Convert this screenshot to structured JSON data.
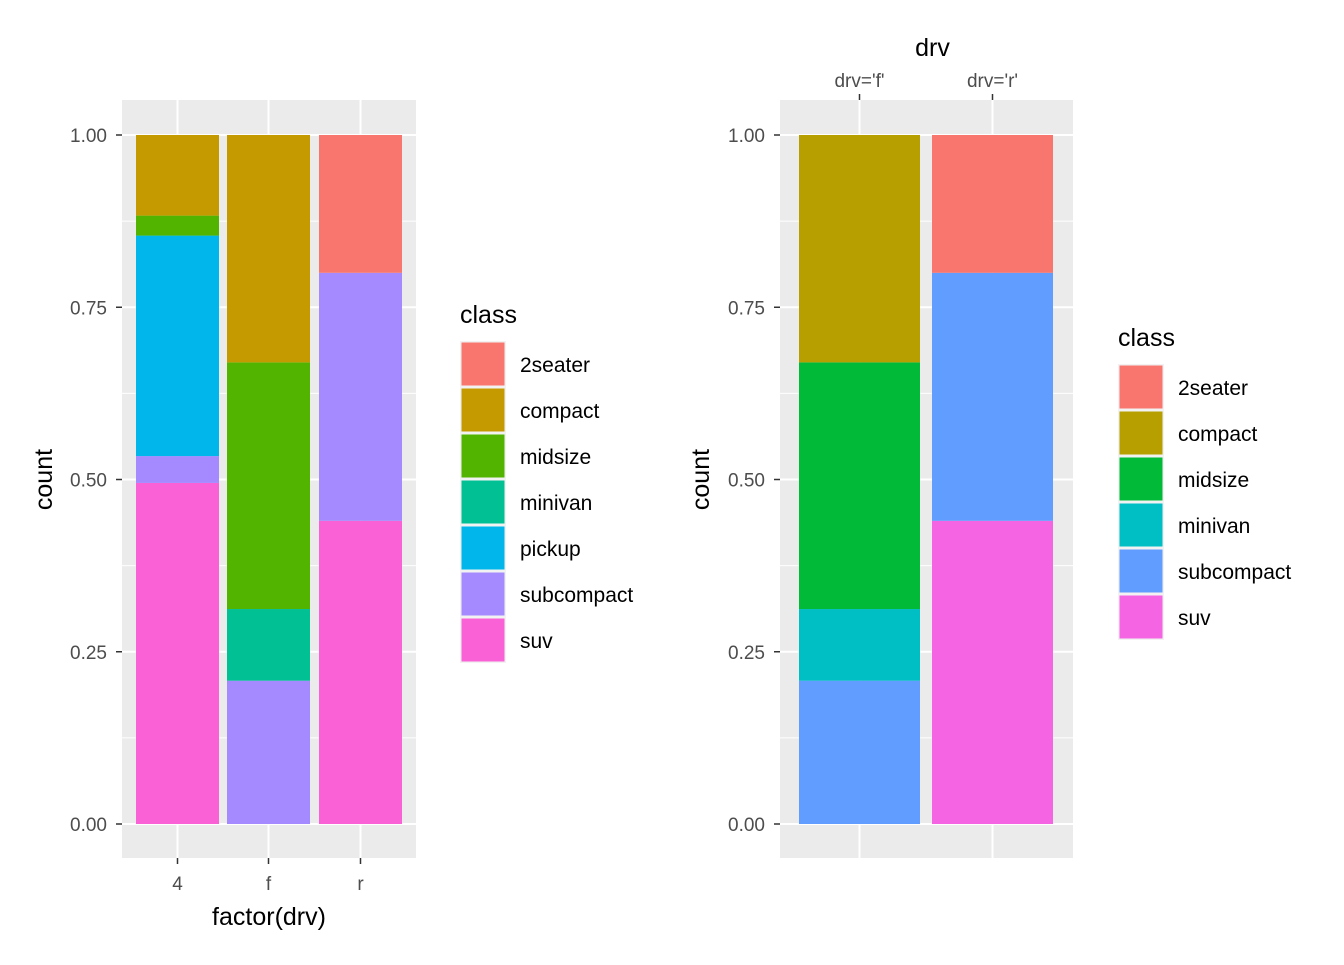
{
  "chart_data": [
    {
      "type": "bar",
      "stacked": true,
      "position": "fill",
      "xlabel": "factor(drv)",
      "ylabel": "count",
      "ylim": [
        0,
        1
      ],
      "y_ticks": [
        "0.00",
        "0.25",
        "0.50",
        "0.75",
        "1.00"
      ],
      "grid": true,
      "legend_placement": "right",
      "categories": [
        "4",
        "f",
        "r"
      ],
      "legend": {
        "title": "class",
        "items": [
          {
            "label": "2seater",
            "color": "#F8766D"
          },
          {
            "label": "compact",
            "color": "#C49A00"
          },
          {
            "label": "midsize",
            "color": "#53B400"
          },
          {
            "label": "minivan",
            "color": "#00C094"
          },
          {
            "label": "pickup",
            "color": "#00B6EB"
          },
          {
            "label": "subcompact",
            "color": "#A58AFF"
          },
          {
            "label": "suv",
            "color": "#FB61D7"
          }
        ]
      },
      "series": [
        {
          "name": "suv",
          "color": "#FB61D7",
          "values": [
            0.495,
            0,
            0.44
          ]
        },
        {
          "name": "subcompact",
          "color": "#A58AFF",
          "values": [
            0.039,
            0.208,
            0.36
          ]
        },
        {
          "name": "pickup",
          "color": "#00B6EB",
          "values": [
            0.32,
            0,
            0
          ]
        },
        {
          "name": "minivan",
          "color": "#00C094",
          "values": [
            0,
            0.104,
            0
          ]
        },
        {
          "name": "midsize",
          "color": "#53B400",
          "values": [
            0.029,
            0.358,
            0
          ]
        },
        {
          "name": "compact",
          "color": "#C49A00",
          "values": [
            0.117,
            0.33,
            0
          ]
        },
        {
          "name": "2seater",
          "color": "#F8766D",
          "values": [
            0,
            0,
            0.2
          ]
        }
      ]
    },
    {
      "type": "bar",
      "stacked": true,
      "position": "fill",
      "xlabel": "",
      "ylabel": "count",
      "top_axis_title": "drv",
      "ylim": [
        0,
        1
      ],
      "y_ticks": [
        "0.00",
        "0.25",
        "0.50",
        "0.75",
        "1.00"
      ],
      "grid": true,
      "legend_placement": "right",
      "categories": [
        "drv='f'",
        "drv='r'"
      ],
      "legend": {
        "title": "class",
        "items": [
          {
            "label": "2seater",
            "color": "#F8766D"
          },
          {
            "label": "compact",
            "color": "#B79F00"
          },
          {
            "label": "midsize",
            "color": "#00BA38"
          },
          {
            "label": "minivan",
            "color": "#00BFC4"
          },
          {
            "label": "subcompact",
            "color": "#619CFF"
          },
          {
            "label": "suv",
            "color": "#F564E3"
          }
        ]
      },
      "series": [
        {
          "name": "suv",
          "color": "#F564E3",
          "values": [
            0,
            0.44
          ]
        },
        {
          "name": "subcompact",
          "color": "#619CFF",
          "values": [
            0.208,
            0.36
          ]
        },
        {
          "name": "minivan",
          "color": "#00BFC4",
          "values": [
            0.104,
            0
          ]
        },
        {
          "name": "midsize",
          "color": "#00BA38",
          "values": [
            0.358,
            0
          ]
        },
        {
          "name": "compact",
          "color": "#B79F00",
          "values": [
            0.33,
            0
          ]
        },
        {
          "name": "2seater",
          "color": "#F8766D",
          "values": [
            0,
            0.2
          ]
        }
      ]
    }
  ]
}
